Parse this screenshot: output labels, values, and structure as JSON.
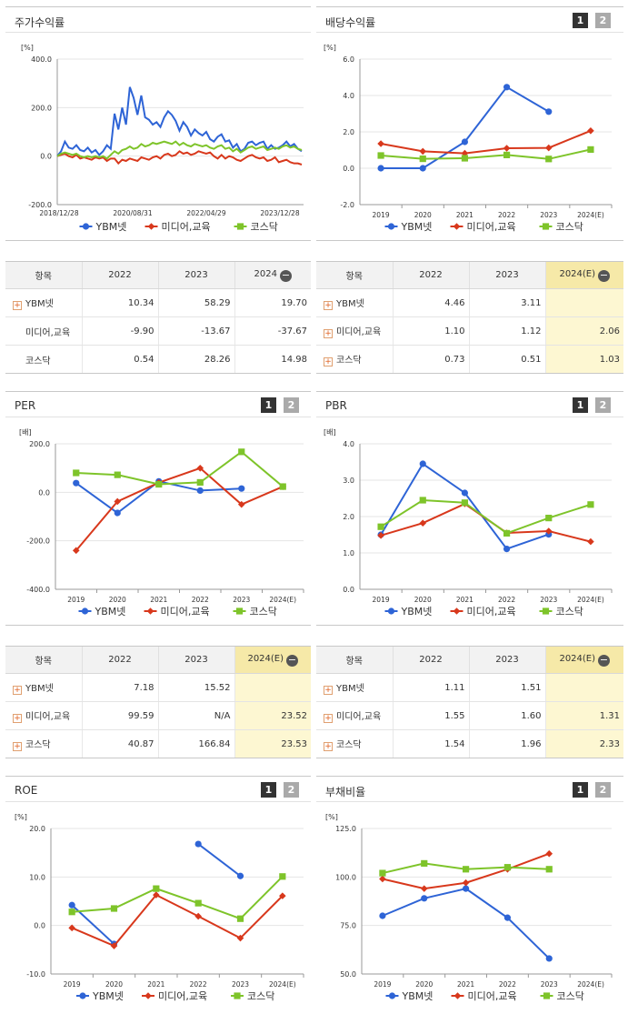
{
  "legend_labels": [
    "YBM넷",
    "미디어,교육",
    "코스닥"
  ],
  "page_buttons": [
    "1",
    "2"
  ],
  "colors": {
    "ybm": "#2e64d6",
    "media": "#d8381c",
    "kosdaq": "#7ec42a"
  },
  "panels": {
    "stock": {
      "title": "주가수익률",
      "unit": "[%]"
    },
    "dividend": {
      "title": "배당수익률",
      "unit": "[%]"
    },
    "per": {
      "title": "PER",
      "unit": "[배]"
    },
    "pbr": {
      "title": "PBR",
      "unit": "[배]"
    },
    "roe": {
      "title": "ROE",
      "unit": "[%]"
    },
    "debt": {
      "title": "부채비율",
      "unit": "[%]"
    }
  },
  "tables": {
    "stock": {
      "headers": [
        "항목",
        "2022",
        "2023",
        "2024"
      ],
      "rows": [
        {
          "name": "YBM넷",
          "plus": true,
          "values": [
            "10.34",
            "58.29",
            "19.70"
          ]
        },
        {
          "name": "미디어,교육",
          "plus": false,
          "values": [
            "-9.90",
            "-13.67",
            "-37.67"
          ]
        },
        {
          "name": "코스닥",
          "plus": false,
          "values": [
            "0.54",
            "28.26",
            "14.98"
          ]
        }
      ]
    },
    "dividend": {
      "headers": [
        "항목",
        "2022",
        "2023",
        "2024(E)"
      ],
      "rows": [
        {
          "name": "YBM넷",
          "plus": true,
          "values": [
            "4.46",
            "3.11",
            ""
          ]
        },
        {
          "name": "미디어,교육",
          "plus": true,
          "values": [
            "1.10",
            "1.12",
            "2.06"
          ]
        },
        {
          "name": "코스닥",
          "plus": true,
          "values": [
            "0.73",
            "0.51",
            "1.03"
          ]
        }
      ]
    },
    "per": {
      "headers": [
        "항목",
        "2022",
        "2023",
        "2024(E)"
      ],
      "rows": [
        {
          "name": "YBM넷",
          "plus": true,
          "values": [
            "7.18",
            "15.52",
            ""
          ]
        },
        {
          "name": "미디어,교육",
          "plus": true,
          "values": [
            "99.59",
            "N/A",
            "23.52"
          ]
        },
        {
          "name": "코스닥",
          "plus": true,
          "values": [
            "40.87",
            "166.84",
            "23.53"
          ]
        }
      ]
    },
    "pbr": {
      "headers": [
        "항목",
        "2022",
        "2023",
        "2024(E)"
      ],
      "rows": [
        {
          "name": "YBM넷",
          "plus": true,
          "values": [
            "1.11",
            "1.51",
            ""
          ]
        },
        {
          "name": "미디어,교육",
          "plus": true,
          "values": [
            "1.55",
            "1.60",
            "1.31"
          ]
        },
        {
          "name": "코스닥",
          "plus": true,
          "values": [
            "1.54",
            "1.96",
            "2.33"
          ]
        }
      ]
    }
  },
  "chart_data": [
    {
      "id": "stock",
      "type": "line",
      "x_labels": [
        "2018/12/28",
        "2020/08/31",
        "2022/04/29",
        "2023/12/28"
      ],
      "y_ticks": [
        "400.0",
        "200.0",
        "0.0",
        "-200.0"
      ],
      "ylim": [
        -200,
        400
      ],
      "series": [
        {
          "name": "YBM넷",
          "values": [
            0,
            20,
            60,
            35,
            30,
            45,
            25,
            20,
            35,
            15,
            25,
            5,
            20,
            45,
            30,
            175,
            110,
            200,
            130,
            285,
            240,
            170,
            250,
            160,
            150,
            130,
            140,
            120,
            160,
            185,
            170,
            145,
            105,
            140,
            120,
            85,
            110,
            95,
            85,
            100,
            70,
            60,
            80,
            90,
            60,
            65,
            35,
            50,
            20,
            30,
            55,
            60,
            45,
            55,
            60,
            30,
            45,
            30,
            35,
            45,
            60,
            40,
            50,
            30,
            20
          ]
        },
        {
          "name": "미디어,교육",
          "values": [
            0,
            5,
            10,
            0,
            -5,
            5,
            -10,
            -5,
            -10,
            -15,
            -5,
            -10,
            -5,
            -20,
            -10,
            -10,
            -30,
            -15,
            -20,
            -10,
            -15,
            -20,
            -5,
            -10,
            -15,
            -5,
            0,
            -10,
            5,
            10,
            0,
            5,
            20,
            10,
            15,
            5,
            10,
            20,
            15,
            10,
            15,
            0,
            -10,
            5,
            -10,
            0,
            -5,
            -15,
            -20,
            -10,
            0,
            5,
            -5,
            -10,
            -5,
            -20,
            -15,
            -5,
            -25,
            -20,
            -15,
            -25,
            -30,
            -30,
            -35
          ]
        },
        {
          "name": "코스닥",
          "values": [
            0,
            10,
            15,
            10,
            5,
            10,
            0,
            -5,
            0,
            -5,
            0,
            -5,
            0,
            -10,
            5,
            20,
            10,
            25,
            30,
            40,
            30,
            35,
            50,
            40,
            45,
            55,
            50,
            55,
            60,
            55,
            50,
            60,
            45,
            55,
            45,
            40,
            50,
            45,
            40,
            45,
            35,
            30,
            40,
            45,
            30,
            35,
            20,
            30,
            15,
            25,
            35,
            40,
            30,
            35,
            40,
            25,
            30,
            35,
            30,
            40,
            45,
            35,
            40,
            30,
            25
          ]
        }
      ]
    },
    {
      "id": "dividend",
      "type": "line",
      "categories": [
        "2019",
        "2020",
        "2021",
        "2022",
        "2023",
        "2024(E)"
      ],
      "y_ticks": [
        "6.0",
        "4.0",
        "2.0",
        "0.0",
        "-2.0"
      ],
      "ylim": [
        -2,
        6
      ],
      "series": [
        {
          "name": "YBM넷",
          "values": [
            0.0,
            0.0,
            1.45,
            4.46,
            3.11,
            null
          ]
        },
        {
          "name": "미디어,교육",
          "values": [
            1.35,
            0.93,
            0.82,
            1.1,
            1.12,
            2.06
          ]
        },
        {
          "name": "코스닥",
          "values": [
            0.7,
            0.52,
            0.55,
            0.73,
            0.51,
            1.03
          ]
        }
      ]
    },
    {
      "id": "per",
      "type": "line",
      "categories": [
        "2019",
        "2020",
        "2021",
        "2022",
        "2023",
        "2024(E)"
      ],
      "y_ticks": [
        "200.0",
        "0.0",
        "-200.0",
        "-400.0"
      ],
      "ylim": [
        -400,
        200
      ],
      "series": [
        {
          "name": "YBM넷",
          "values": [
            38,
            -85,
            45,
            7.18,
            15.52,
            null
          ]
        },
        {
          "name": "미디어,교육",
          "values": [
            -240,
            -38,
            40,
            99.59,
            -50,
            23.52
          ]
        },
        {
          "name": "코스닥",
          "values": [
            80,
            72,
            33,
            40.87,
            166.84,
            23.53
          ]
        }
      ]
    },
    {
      "id": "pbr",
      "type": "line",
      "categories": [
        "2019",
        "2020",
        "2021",
        "2022",
        "2023",
        "2024(E)"
      ],
      "y_ticks": [
        "4.0",
        "3.0",
        "2.0",
        "1.0",
        "0.0"
      ],
      "ylim": [
        0,
        4
      ],
      "series": [
        {
          "name": "YBM넷",
          "values": [
            1.5,
            3.45,
            2.65,
            1.11,
            1.51,
            null
          ]
        },
        {
          "name": "미디어,교육",
          "values": [
            1.48,
            1.82,
            2.35,
            1.55,
            1.6,
            1.31
          ]
        },
        {
          "name": "코스닥",
          "values": [
            1.72,
            2.45,
            2.38,
            1.54,
            1.96,
            2.33
          ]
        }
      ]
    },
    {
      "id": "roe",
      "type": "line",
      "categories": [
        "2019",
        "2020",
        "2021",
        "2022",
        "2023",
        "2024(E)"
      ],
      "y_ticks": [
        "20.0",
        "10.0",
        "0.0",
        "-10.0"
      ],
      "ylim": [
        -10,
        20
      ],
      "series": [
        {
          "name": "YBM넷",
          "values": [
            4.2,
            -3.8,
            null,
            16.8,
            10.2,
            null
          ]
        },
        {
          "name": "미디어,교육",
          "values": [
            -0.5,
            -4.2,
            6.3,
            1.9,
            -2.6,
            6.1
          ]
        },
        {
          "name": "코스닥",
          "values": [
            2.8,
            3.5,
            7.6,
            4.6,
            1.4,
            10.1
          ]
        }
      ]
    },
    {
      "id": "debt",
      "type": "line",
      "categories": [
        "2019",
        "2020",
        "2021",
        "2022",
        "2023",
        "2024(E)"
      ],
      "y_ticks": [
        "125.0",
        "100.0",
        "75.0",
        "50.0"
      ],
      "ylim": [
        50,
        125
      ],
      "series": [
        {
          "name": "YBM넷",
          "values": [
            80,
            89,
            94,
            79,
            58,
            null
          ]
        },
        {
          "name": "미디어,교육",
          "values": [
            99,
            94,
            97,
            104,
            112,
            null
          ]
        },
        {
          "name": "코스닥",
          "values": [
            102,
            107,
            104,
            105,
            104,
            null
          ]
        }
      ]
    }
  ]
}
